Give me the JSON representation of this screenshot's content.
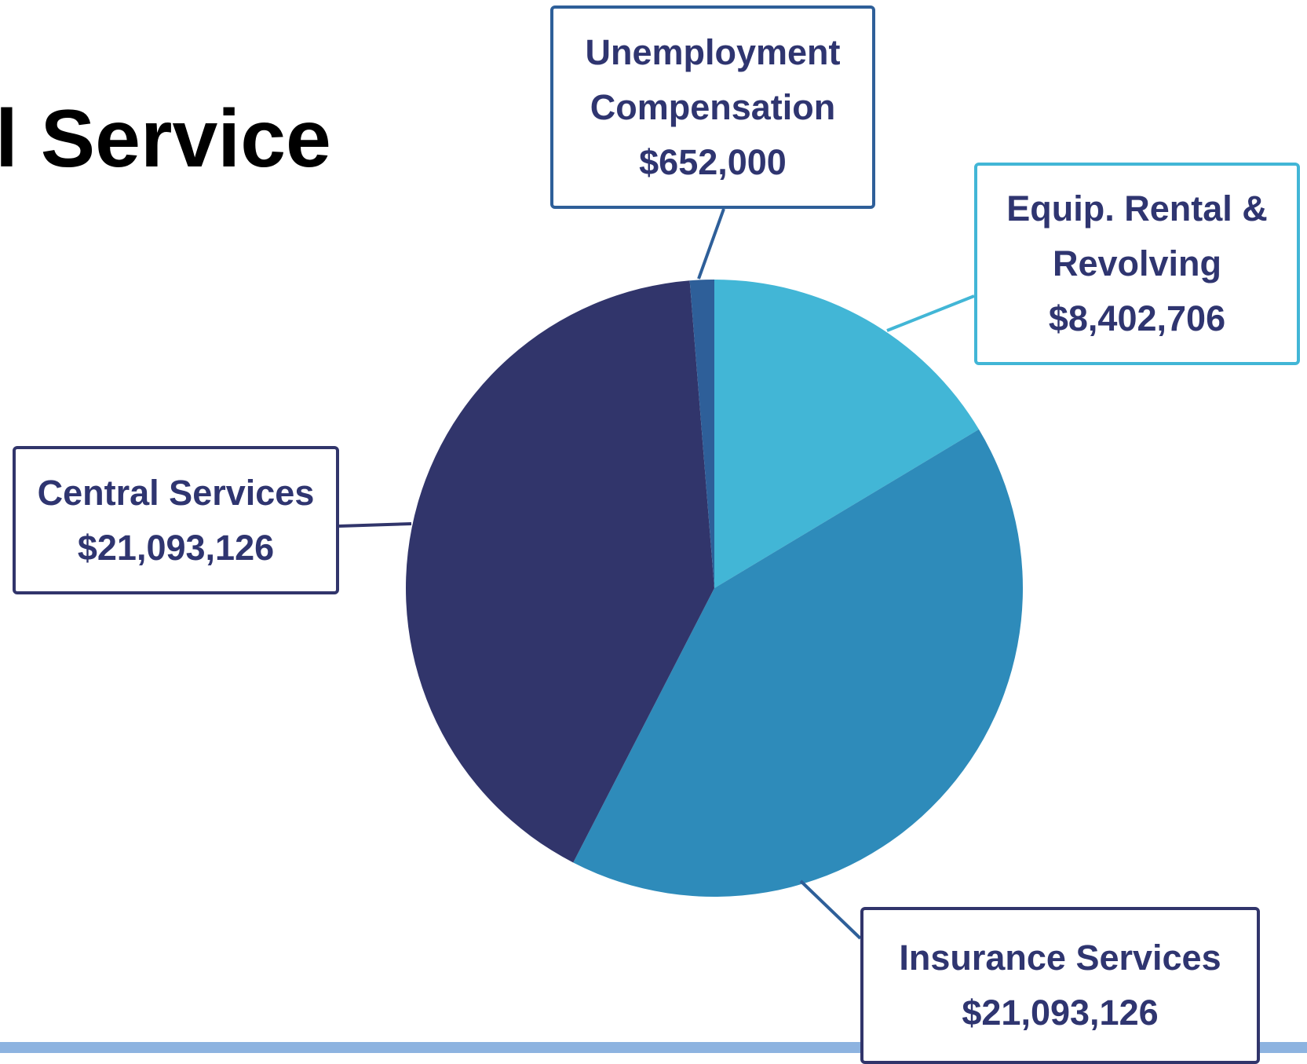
{
  "chart_data": {
    "type": "pie",
    "title": "l Service",
    "categories": [
      "Equip. Rental & Revolving",
      "Insurance Services",
      "Central Services",
      "Unemployment Compensation"
    ],
    "values": [
      8402706,
      21093126,
      21093126,
      652000
    ],
    "value_labels": [
      "$8,402,706",
      "$21,093,126",
      "$21,093,126",
      "$652,000"
    ],
    "colors": [
      "#42b6d6",
      "#2e8bba",
      "#31356b",
      "#2e5f99"
    ]
  }
}
